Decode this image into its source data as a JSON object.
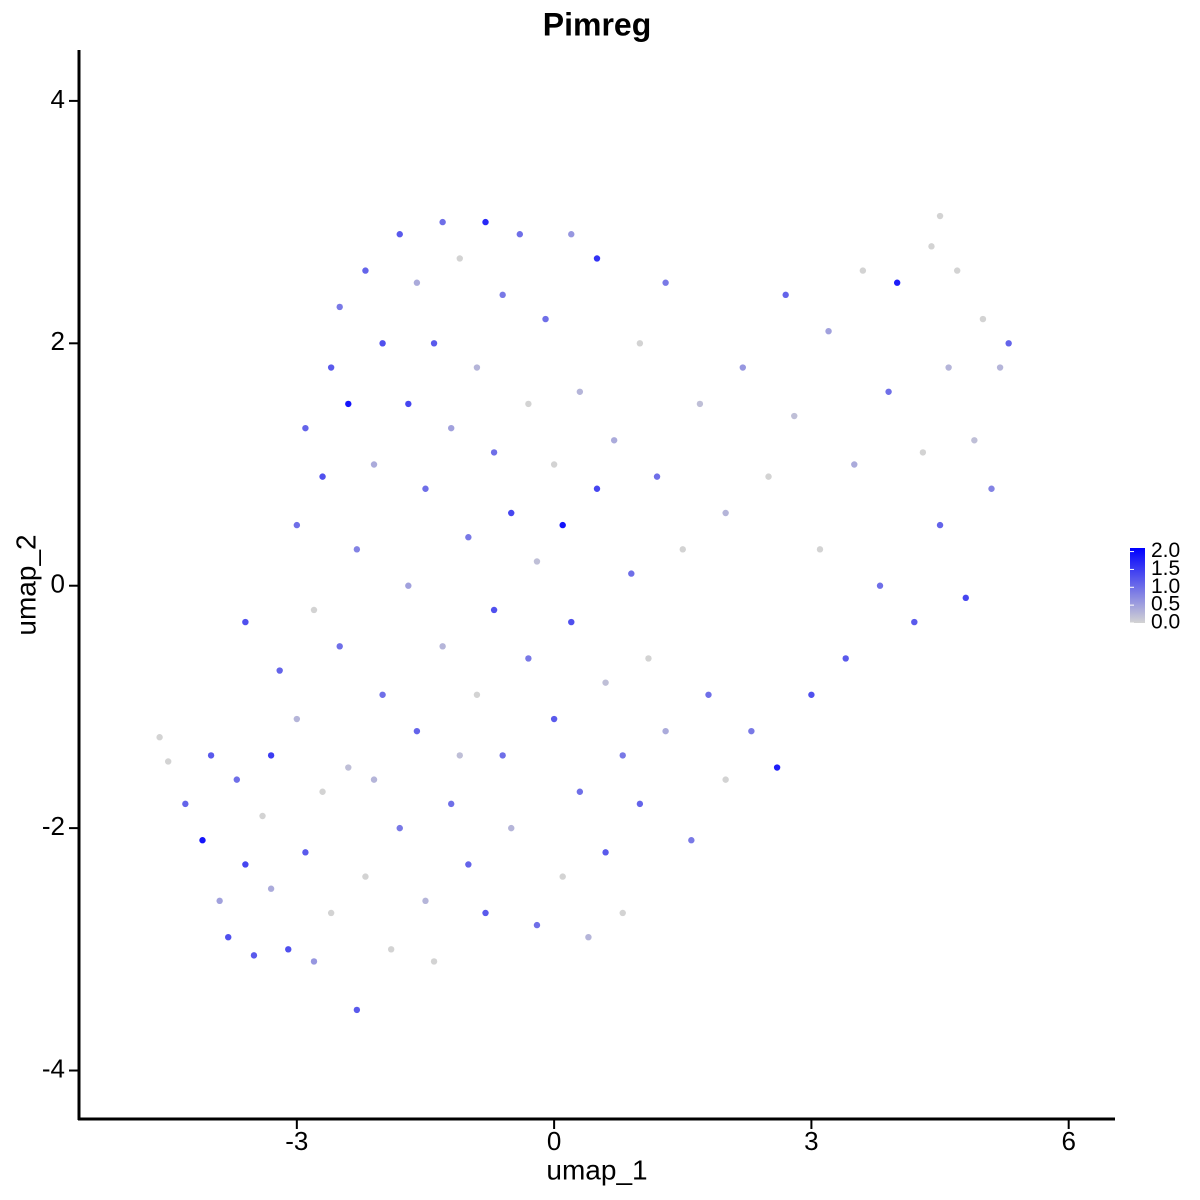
{
  "chart_data": {
    "type": "scatter",
    "title": "Pimreg",
    "x_label": "umap_1",
    "y_label": "umap_2",
    "xlim": [
      -5.54,
      6.54
    ],
    "ylim": [
      -4.4,
      4.42
    ],
    "xticks": [
      -3,
      0,
      3,
      6
    ],
    "yticks": [
      -4,
      -2,
      0,
      2,
      4
    ],
    "colors": [
      "#d3d3d3",
      "#0000ff"
    ],
    "colorlim": [
      0,
      2.1
    ],
    "colorticks": [
      {
        "value": 0,
        "label": "0.0"
      },
      {
        "value": 0.5,
        "label": "0.5"
      },
      {
        "value": 1,
        "label": "1.0"
      },
      {
        "value": 1.5,
        "label": "1.5"
      },
      {
        "value": 2,
        "label": "2.0"
      }
    ],
    "x": [
      -4.6,
      -4.5,
      -4.3,
      -4.1,
      -4.0,
      -3.9,
      -3.8,
      -3.7,
      -3.6,
      -3.5,
      -3.4,
      -3.3,
      -3.3,
      -3.2,
      -3.1,
      -3.0,
      -3.0,
      -2.9,
      -2.9,
      -2.8,
      -2.8,
      -2.7,
      -2.7,
      -2.6,
      -2.6,
      -2.5,
      -2.5,
      -2.4,
      -2.4,
      -2.3,
      -2.3,
      -2.2,
      -2.2,
      -2.1,
      -2.0,
      -2.0,
      -1.9,
      -1.8,
      -1.8,
      -1.7,
      -1.7,
      -1.6,
      -1.6,
      -1.5,
      -1.5,
      -1.4,
      -1.4,
      -1.3,
      -1.3,
      -1.2,
      -1.2,
      -1.1,
      -1.0,
      -1.0,
      -0.9,
      -0.9,
      -0.8,
      -0.8,
      -0.7,
      -0.7,
      -0.6,
      -0.6,
      -0.5,
      -0.5,
      -0.4,
      -0.3,
      -0.3,
      -0.2,
      -0.2,
      -0.1,
      0.0,
      0.0,
      0.1,
      0.1,
      0.2,
      0.2,
      0.3,
      0.3,
      0.4,
      0.5,
      0.5,
      0.6,
      0.6,
      0.7,
      0.8,
      0.8,
      0.9,
      1.0,
      1.0,
      1.1,
      1.2,
      1.3,
      1.3,
      1.5,
      1.6,
      1.7,
      1.8,
      2.0,
      2.0,
      2.2,
      2.3,
      2.5,
      2.6,
      2.7,
      2.8,
      3.0,
      3.1,
      3.2,
      3.4,
      3.5,
      3.6,
      3.8,
      3.9,
      4.0,
      4.2,
      4.3,
      4.4,
      4.5,
      4.6,
      4.7,
      4.8,
      4.9,
      5.0,
      5.1,
      5.2,
      5.3,
      -3.6,
      -2.1,
      -1.1,
      4.5
    ],
    "y": [
      -1.25,
      -1.45,
      -1.8,
      -2.1,
      -1.4,
      -2.6,
      -2.9,
      -1.6,
      -2.3,
      -3.05,
      -1.9,
      -1.4,
      -2.5,
      -0.7,
      -3.0,
      0.5,
      -1.1,
      -2.2,
      1.3,
      -0.2,
      -3.1,
      0.9,
      -1.7,
      1.8,
      -2.7,
      -0.5,
      2.3,
      1.5,
      -1.5,
      -3.5,
      0.3,
      2.6,
      -2.4,
      1.0,
      -0.9,
      2.0,
      -3.0,
      2.9,
      -2.0,
      1.5,
      0.0,
      -1.2,
      2.5,
      -2.6,
      0.8,
      -3.1,
      2.0,
      -0.5,
      3.0,
      1.3,
      -1.8,
      2.7,
      -2.3,
      0.4,
      -0.9,
      1.8,
      3.0,
      -2.7,
      -0.2,
      1.1,
      2.4,
      -1.4,
      -2.0,
      0.6,
      2.9,
      -0.6,
      1.5,
      -2.8,
      0.2,
      2.2,
      -1.1,
      1.0,
      0.5,
      -2.4,
      2.9,
      -0.3,
      1.6,
      -1.7,
      -2.9,
      0.8,
      2.7,
      -0.8,
      -2.2,
      1.2,
      -1.4,
      -2.7,
      0.1,
      2.0,
      -1.8,
      -0.6,
      0.9,
      -1.2,
      2.5,
      0.3,
      -2.1,
      1.5,
      -0.9,
      -1.6,
      0.6,
      1.8,
      -1.2,
      0.9,
      -1.5,
      2.4,
      1.4,
      -0.9,
      0.3,
      2.1,
      -0.6,
      1.0,
      2.6,
      0.0,
      1.6,
      2.5,
      -0.3,
      1.1,
      2.8,
      0.5,
      1.8,
      2.6,
      -0.1,
      1.2,
      2.2,
      0.8,
      1.8,
      2.0,
      -0.3,
      -1.6,
      -1.4,
      3.05
    ],
    "values": [
      0,
      0,
      1.1,
      1.9,
      1.2,
      0.5,
      1.3,
      1.0,
      1.4,
      1.2,
      0,
      1.5,
      0.4,
      1.1,
      1.3,
      1.0,
      0.3,
      1.2,
      1.1,
      0,
      0.6,
      1.3,
      0,
      1.2,
      0,
      1.0,
      0.9,
      1.9,
      0.2,
      1.2,
      0.8,
      1.1,
      0,
      0.4,
      1.0,
      1.3,
      0,
      1.2,
      0.9,
      1.4,
      0.5,
      1.1,
      0.4,
      0.3,
      1.0,
      0,
      1.2,
      0.3,
      1.0,
      0.5,
      1.0,
      0,
      1.1,
      0.9,
      0,
      0.3,
      1.7,
      1.2,
      1.3,
      1.0,
      0.9,
      1.0,
      0.3,
      1.4,
      1.0,
      0.9,
      0,
      1.0,
      0.2,
      1.0,
      1.2,
      0,
      1.9,
      0,
      0.6,
      1.3,
      0.3,
      1.0,
      0.3,
      1.4,
      1.6,
      0.2,
      1.2,
      0.4,
      0.9,
      0,
      1.0,
      0,
      1.1,
      0,
      1.0,
      0.4,
      0.9,
      0,
      0.9,
      0.2,
      1.0,
      0,
      0.3,
      0.6,
      0.9,
      0,
      1.8,
      1.1,
      0.2,
      1.3,
      0,
      0.5,
      1.2,
      0.4,
      0,
      1.0,
      1.0,
      1.8,
      1.2,
      0,
      0,
      1.1,
      0.3,
      0,
      1.4,
      0.2,
      0,
      0.8,
      0.3,
      1.1,
      1.3,
      0.3,
      0.2,
      0
    ]
  }
}
